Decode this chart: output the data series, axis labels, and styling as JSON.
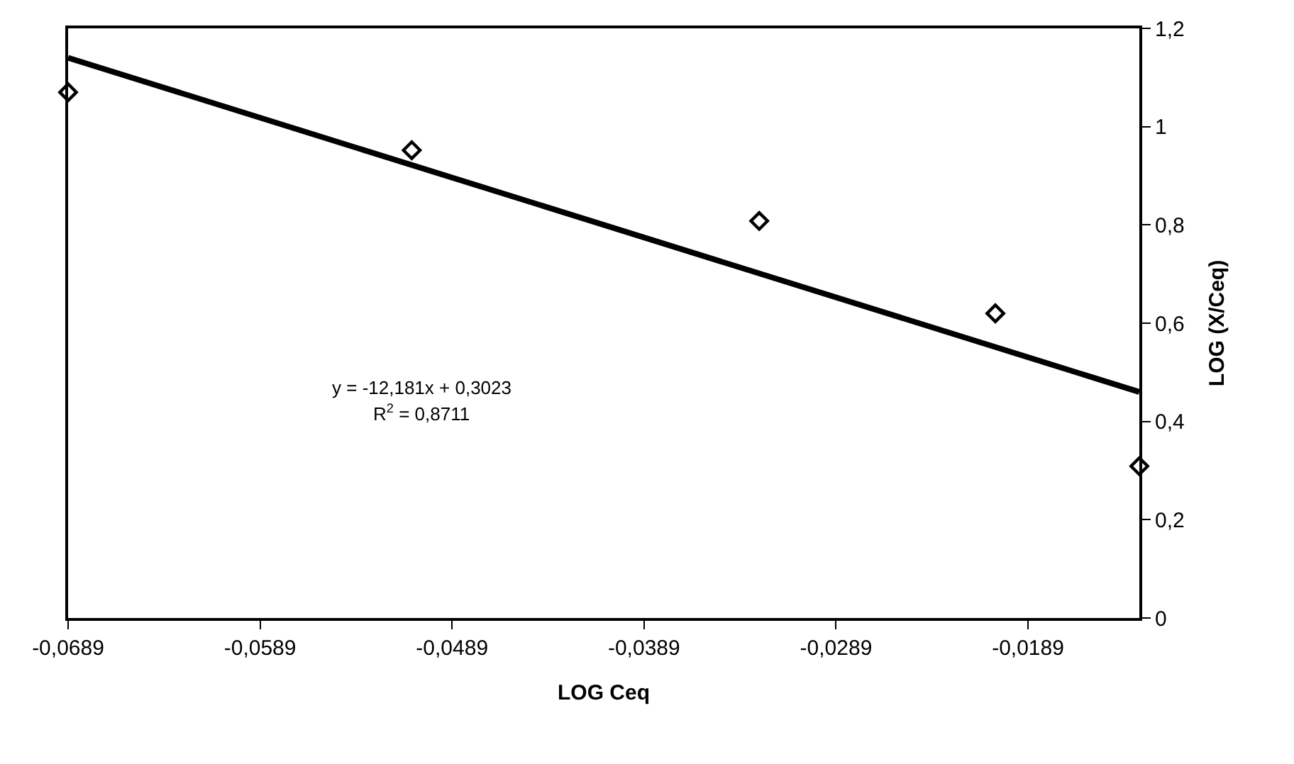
{
  "chart_data": {
    "type": "scatter",
    "xlabel": "LOG Ceq",
    "ylabel": "LOG (X/Ceq)",
    "x": [
      -0.0689,
      -0.051,
      -0.0329,
      -0.0206,
      -0.0131
    ],
    "series": [
      {
        "color": "#000000",
        "marker": "diamond",
        "values": [
          1.07,
          0.952,
          0.808,
          0.62,
          0.309
        ]
      },
      {
        "type": "line",
        "color": "#000000",
        "marker": "none",
        "x": [
          -0.0689,
          -0.0131
        ],
        "values": [
          1.14,
          0.46
        ]
      }
    ],
    "xlim": [
      -0.0689,
      -0.0131
    ],
    "ylim": [
      0,
      1.2
    ],
    "xticks": [
      {
        "value": -0.0689,
        "label": "-0,0689"
      },
      {
        "value": -0.0589,
        "label": "-0,0589"
      },
      {
        "value": -0.0489,
        "label": "-0,0489"
      },
      {
        "value": -0.0389,
        "label": "-0,0389"
      },
      {
        "value": -0.0289,
        "label": "-0,0289"
      },
      {
        "value": -0.0189,
        "label": "-0,0189"
      }
    ],
    "yticks": [
      0,
      {
        "value": 0.2,
        "label": "0,2"
      },
      {
        "value": 0.4,
        "label": "0,4"
      },
      {
        "value": 0.6,
        "label": "0,6"
      },
      {
        "value": 0.8,
        "label": "0,8"
      },
      1,
      {
        "value": 1.2,
        "label": "1,2"
      }
    ],
    "annotations": [
      "y = -12,181x + 0,3023",
      "R$^{2}$ = 0,8711"
    ]
  }
}
